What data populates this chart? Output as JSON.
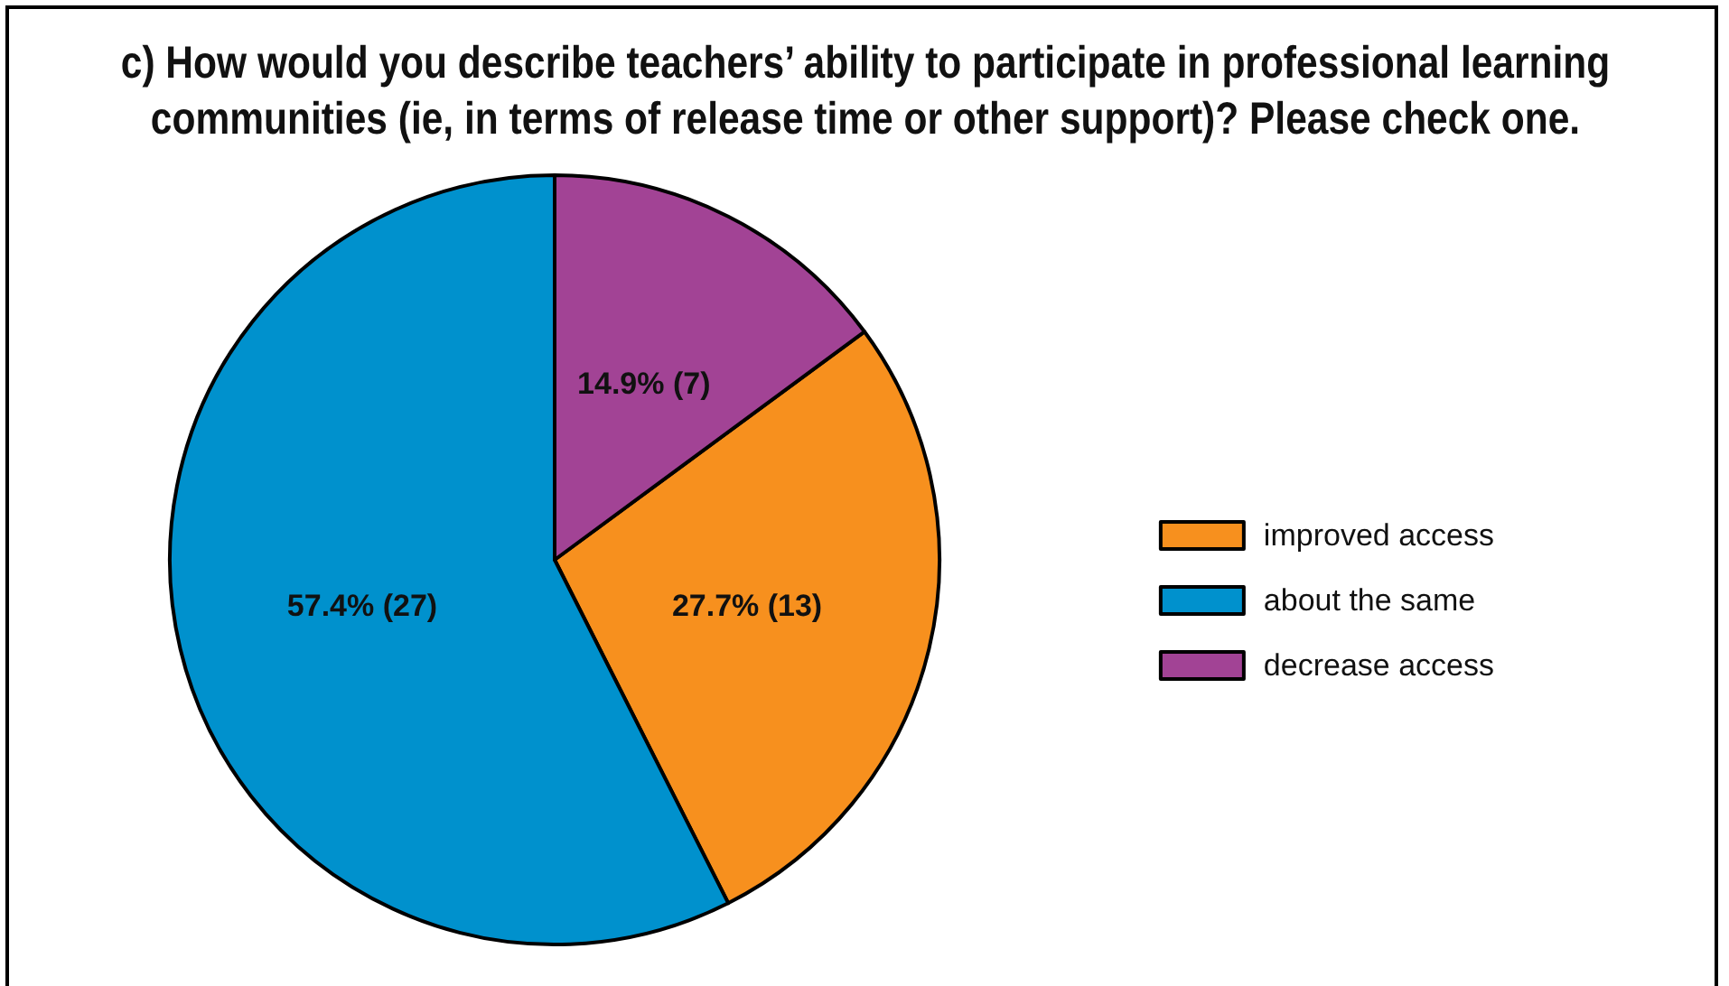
{
  "chart_data": {
    "type": "pie",
    "title": "c) How would you describe teachers’ ability to participate in professional learning communities (ie, in terms of release time or other support)? Please check one.",
    "categories": [
      "improved access",
      "about the same",
      "decrease access"
    ],
    "values": [
      13,
      27,
      7
    ],
    "colors": [
      "#f7901e",
      "#0091cd",
      "#a24395"
    ],
    "value_labels": [
      "27.7% (13)",
      "57.4% (27)",
      "14.9% (7)"
    ],
    "legend": "right"
  }
}
